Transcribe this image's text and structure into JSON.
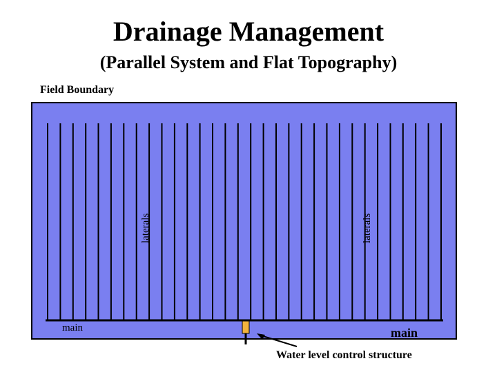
{
  "title": "Drainage Management",
  "subtitle": "(Parallel System and Flat Topography)",
  "field_label": "Field Boundary",
  "labels": {
    "main_left": "main",
    "main_right": "main",
    "laterals_left": "laterals",
    "laterals_right": "laterals",
    "control_structure": "Water level control structure"
  },
  "colors": {
    "field": "#7a7ff0",
    "pipe": "#000000",
    "control_structure": "#f2b33d"
  },
  "lateral_count": 32
}
